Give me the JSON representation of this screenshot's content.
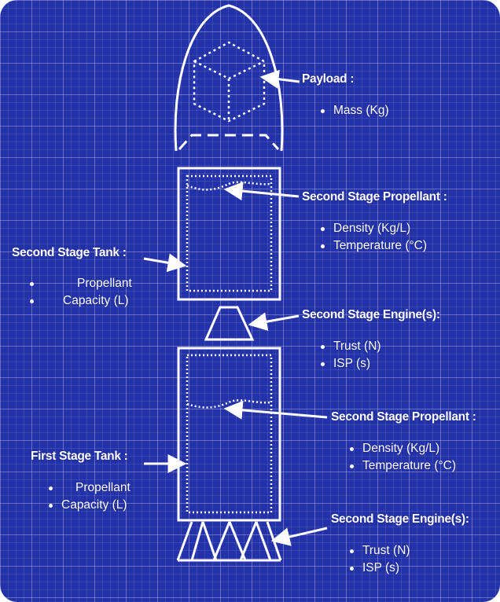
{
  "payload": {
    "title": "Payload :",
    "items": [
      "Mass (Kg)"
    ]
  },
  "second_stage_propellant": {
    "title": "Second Stage Propellant :",
    "items": [
      "Density (Kg/L)",
      "Temperature (°C)"
    ]
  },
  "second_stage_tank": {
    "title": "Second Stage Tank :",
    "items": [
      "Propellant",
      "Capacity (L)"
    ]
  },
  "second_stage_engines": {
    "title": "Second Stage Engine(s):",
    "items": [
      "Trust (N)",
      "ISP (s)"
    ]
  },
  "first_stage_propellant": {
    "title": "Second Stage Propellant :",
    "items": [
      "Density (Kg/L)",
      "Temperature (°C)"
    ]
  },
  "first_stage_tank": {
    "title": "First Stage Tank :",
    "items": [
      "Propellant",
      "Capacity (L)"
    ]
  },
  "first_stage_engines": {
    "title": "Second Stage Engine(s):",
    "items": [
      "Trust (N)",
      "ISP (s)"
    ]
  },
  "colors": {
    "background": "#2332a8",
    "line": "#ffffff"
  }
}
